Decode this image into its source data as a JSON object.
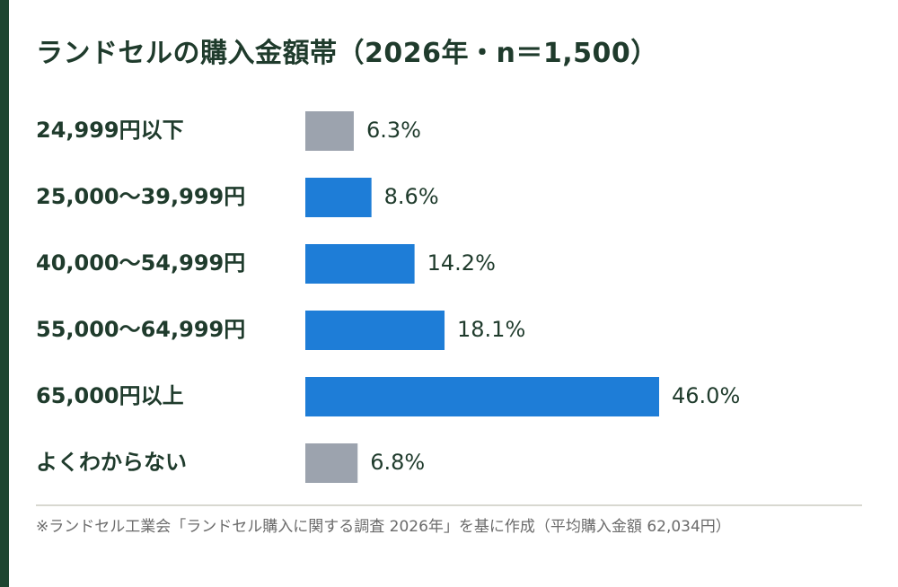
{
  "title": "ランドセルの購入金額帯（2026年・n＝1,500）",
  "footnote": "※ランドセル工業会「ランドセル購入に関する調査 2026年」を基に作成（平均購入金額 62,034円）",
  "colors": {
    "accent_bar": "#1e7dd7",
    "neutral_bar": "#9ca3ae",
    "text": "#1f3b2c",
    "left_strip": "#1d4530"
  },
  "chart_data": {
    "type": "bar",
    "orientation": "horizontal",
    "categories": [
      "24,999円以下",
      "25,000〜39,999円",
      "40,000〜54,999円",
      "55,000〜64,999円",
      "65,000円以上",
      "よくわからない"
    ],
    "values": [
      6.3,
      8.6,
      14.2,
      18.1,
      46.0,
      6.8
    ],
    "value_labels": [
      "6.3%",
      "8.6%",
      "14.2%",
      "18.1%",
      "46.0%",
      "6.8%"
    ],
    "highlight": [
      false,
      true,
      true,
      true,
      true,
      false
    ],
    "unit": "%",
    "xlim": [
      0,
      50
    ],
    "grid": false,
    "legend": "none"
  }
}
